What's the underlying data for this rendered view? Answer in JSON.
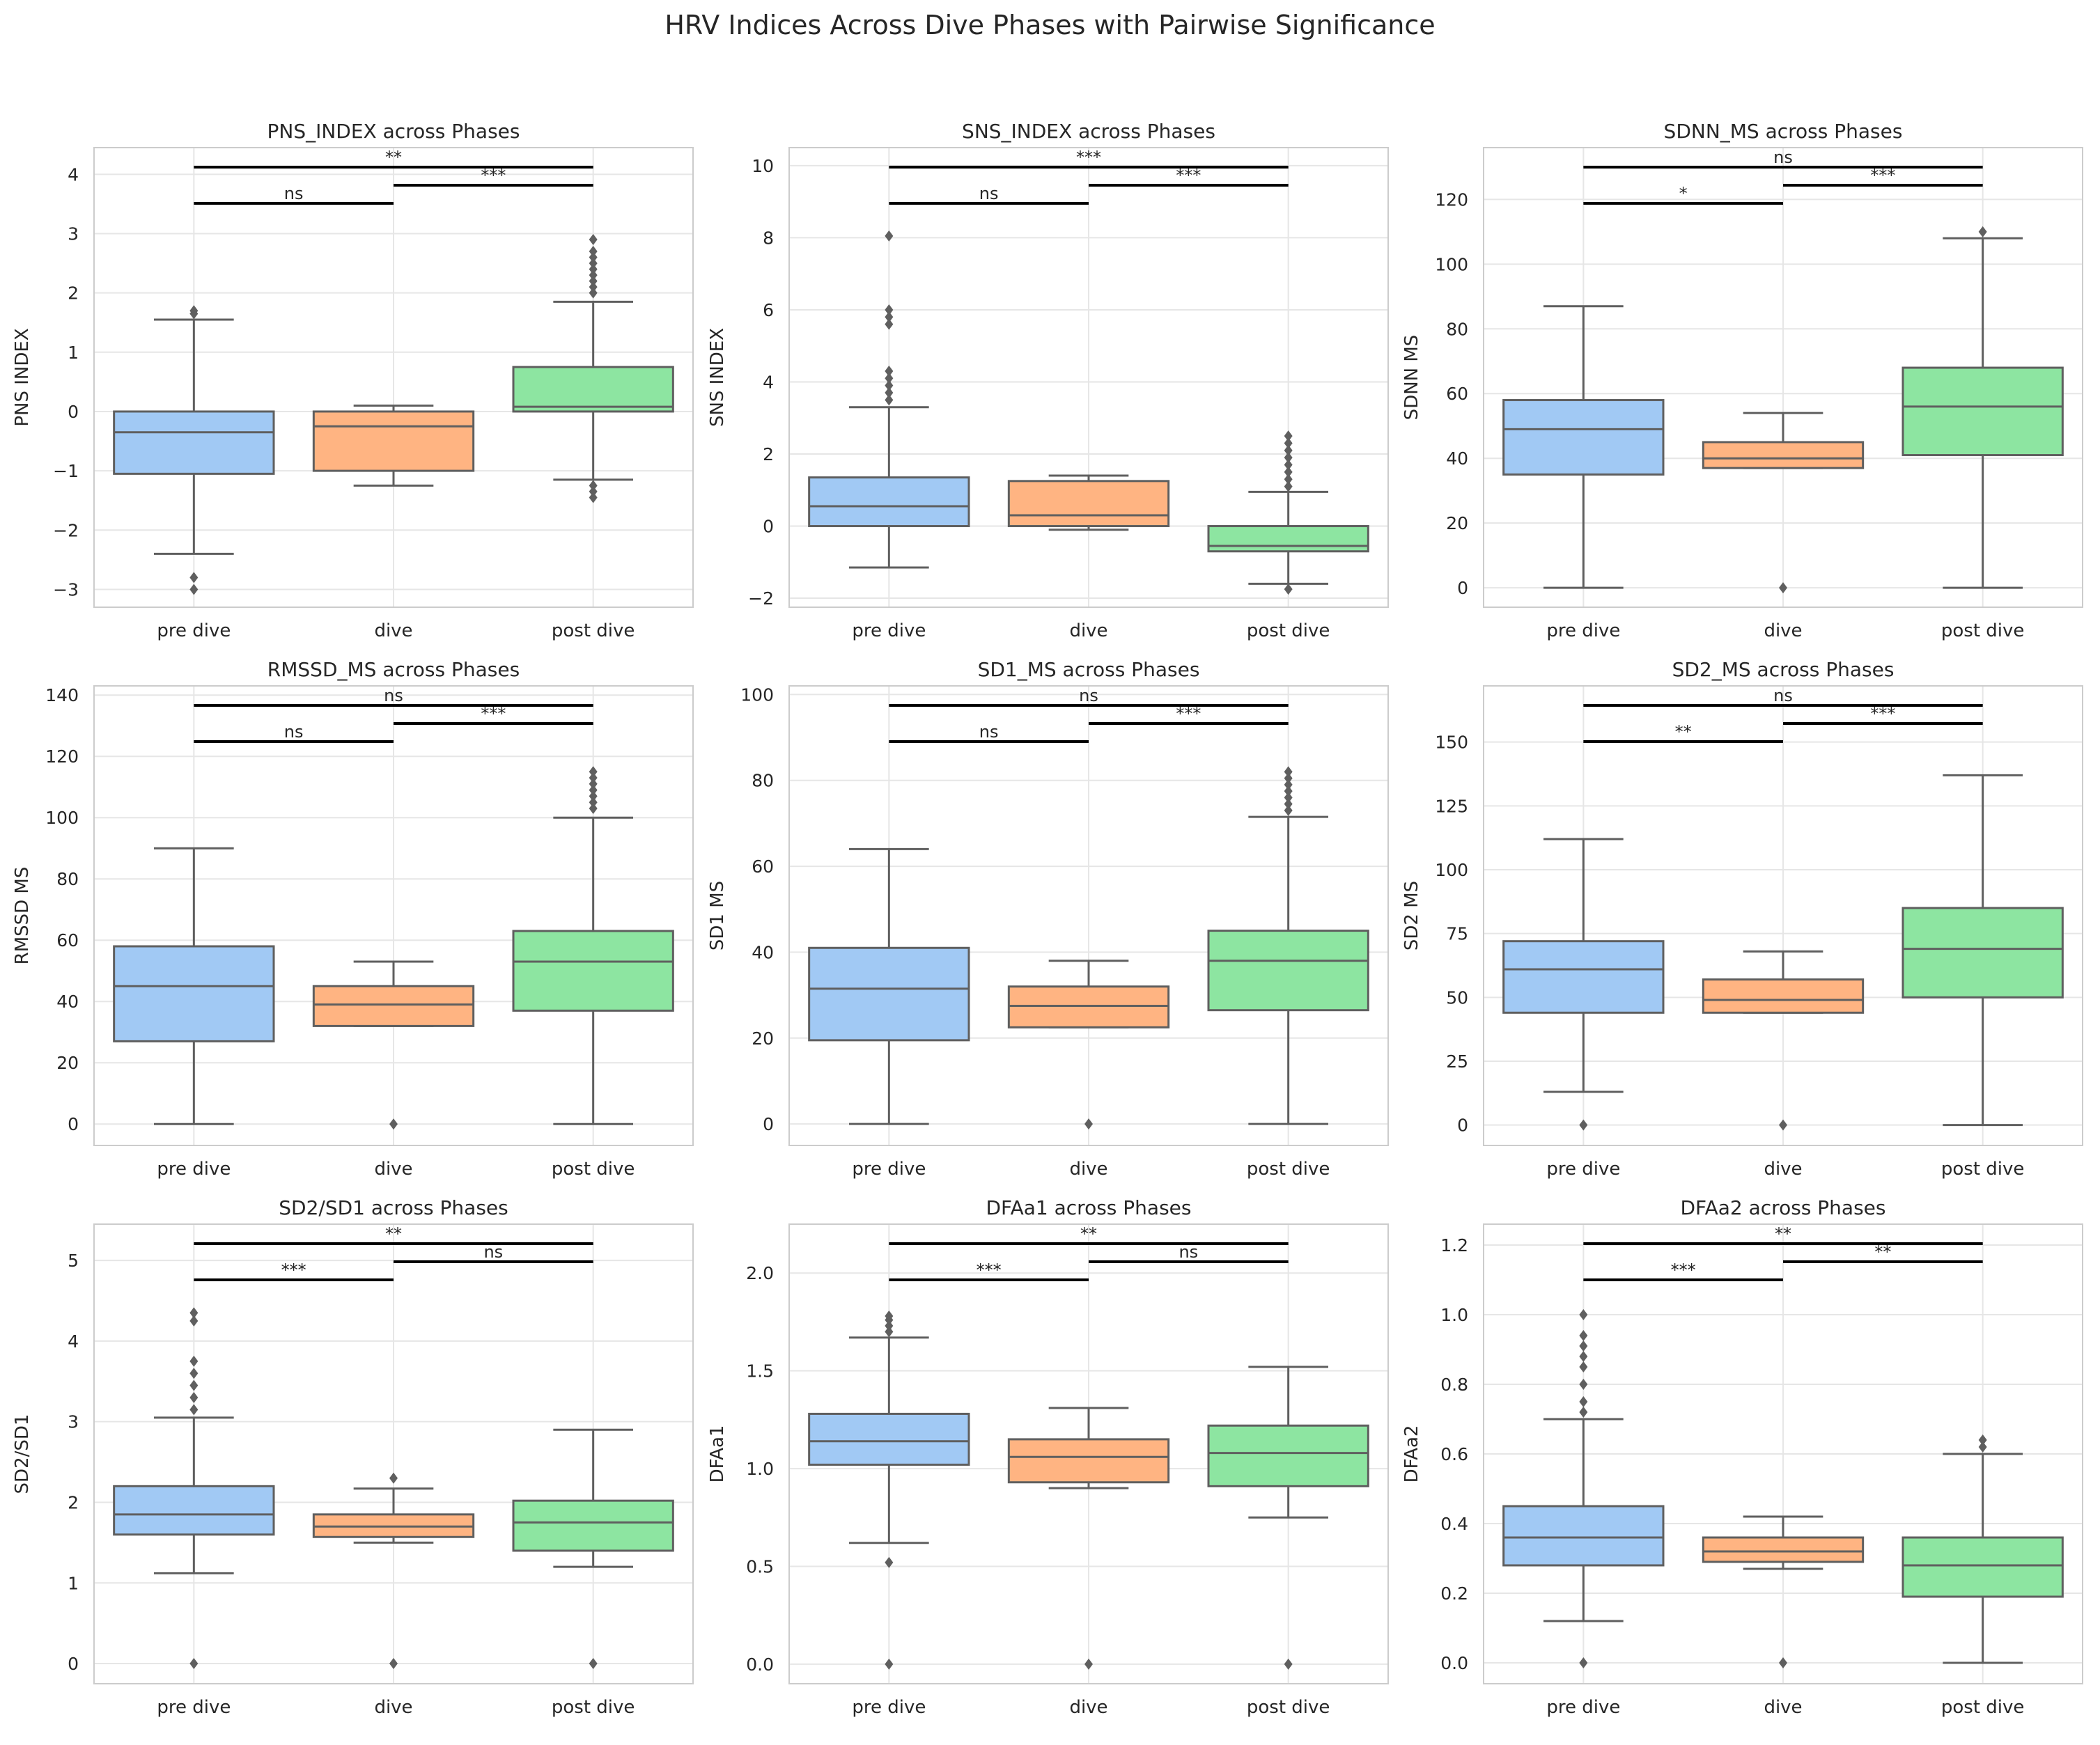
{
  "figure_title": "HRV Indices Across Dive Phases with Pairwise Significance",
  "chart_data": [
    {
      "type": "box",
      "title": "PNS_INDEX across Phases",
      "ylabel": "PNS INDEX",
      "categories": [
        "pre dive",
        "dive",
        "post dive"
      ],
      "ylim": [
        -3.3,
        4.45
      ],
      "yticks": [
        -3,
        -2,
        -1,
        0,
        1,
        2,
        3,
        4
      ],
      "boxes": [
        {
          "whislo": -2.4,
          "q1": -1.05,
          "med": -0.35,
          "q3": 0.0,
          "whishi": 1.55,
          "fliers": [
            -3.0,
            -2.8,
            1.65,
            1.7
          ]
        },
        {
          "whislo": -1.25,
          "q1": -1.0,
          "med": -0.25,
          "q3": 0.0,
          "whishi": 0.1,
          "fliers": []
        },
        {
          "whislo": -1.15,
          "q1": 0.0,
          "med": 0.08,
          "q3": 0.75,
          "whishi": 1.85,
          "fliers": [
            -1.45,
            -1.35,
            -1.25,
            2.0,
            2.1,
            2.2,
            2.3,
            2.4,
            2.5,
            2.6,
            2.7,
            2.9
          ]
        }
      ],
      "significance": [
        {
          "from": 0,
          "to": 1,
          "label": "ns"
        },
        {
          "from": 1,
          "to": 2,
          "label": "***"
        },
        {
          "from": 0,
          "to": 2,
          "label": "**"
        }
      ]
    },
    {
      "type": "box",
      "title": "SNS_INDEX across Phases",
      "ylabel": "SNS INDEX",
      "categories": [
        "pre dive",
        "dive",
        "post dive"
      ],
      "ylim": [
        -2.25,
        10.5
      ],
      "yticks": [
        -2,
        0,
        2,
        4,
        6,
        8,
        10
      ],
      "boxes": [
        {
          "whislo": -1.15,
          "q1": 0.0,
          "med": 0.55,
          "q3": 1.35,
          "whishi": 3.3,
          "fliers": [
            3.5,
            3.7,
            3.9,
            4.1,
            4.3,
            5.6,
            5.8,
            6.0,
            8.05
          ]
        },
        {
          "whislo": -0.1,
          "q1": 0.0,
          "med": 0.3,
          "q3": 1.25,
          "whishi": 1.4,
          "fliers": []
        },
        {
          "whislo": -1.6,
          "q1": -0.7,
          "med": -0.55,
          "q3": 0.0,
          "whishi": 0.95,
          "fliers": [
            -1.75,
            1.1,
            1.3,
            1.5,
            1.7,
            1.9,
            2.1,
            2.3,
            2.5
          ]
        }
      ],
      "significance": [
        {
          "from": 0,
          "to": 1,
          "label": "ns"
        },
        {
          "from": 1,
          "to": 2,
          "label": "***"
        },
        {
          "from": 0,
          "to": 2,
          "label": "***"
        }
      ]
    },
    {
      "type": "box",
      "title": "SDNN_MS across Phases",
      "ylabel": "SDNN MS",
      "categories": [
        "pre dive",
        "dive",
        "post dive"
      ],
      "ylim": [
        -6,
        136
      ],
      "yticks": [
        0,
        20,
        40,
        60,
        80,
        100,
        120
      ],
      "boxes": [
        {
          "whislo": 0,
          "q1": 35,
          "med": 49,
          "q3": 58,
          "whishi": 87,
          "fliers": []
        },
        {
          "whislo": 37,
          "q1": 37,
          "med": 40,
          "q3": 45,
          "whishi": 54,
          "fliers": [
            0
          ]
        },
        {
          "whislo": 0,
          "q1": 41,
          "med": 56,
          "q3": 68,
          "whishi": 108,
          "fliers": [
            110
          ]
        }
      ],
      "significance": [
        {
          "from": 0,
          "to": 1,
          "label": "*"
        },
        {
          "from": 1,
          "to": 2,
          "label": "***"
        },
        {
          "from": 0,
          "to": 2,
          "label": "ns"
        }
      ]
    },
    {
      "type": "box",
      "title": "RMSSD_MS across Phases",
      "ylabel": "RMSSD MS",
      "categories": [
        "pre dive",
        "dive",
        "post dive"
      ],
      "ylim": [
        -7,
        143
      ],
      "yticks": [
        0,
        20,
        40,
        60,
        80,
        100,
        120,
        140
      ],
      "boxes": [
        {
          "whislo": 0,
          "q1": 27,
          "med": 45,
          "q3": 58,
          "whishi": 90,
          "fliers": []
        },
        {
          "whislo": 32,
          "q1": 32,
          "med": 39,
          "q3": 45,
          "whishi": 53,
          "fliers": [
            0
          ]
        },
        {
          "whislo": 0,
          "q1": 37,
          "med": 53,
          "q3": 63,
          "whishi": 100,
          "fliers": [
            103,
            105,
            107,
            109,
            111,
            113,
            115
          ]
        }
      ],
      "significance": [
        {
          "from": 0,
          "to": 1,
          "label": "ns"
        },
        {
          "from": 1,
          "to": 2,
          "label": "***"
        },
        {
          "from": 0,
          "to": 2,
          "label": "ns"
        }
      ]
    },
    {
      "type": "box",
      "title": "SD1_MS across Phases",
      "ylabel": "SD1 MS",
      "categories": [
        "pre dive",
        "dive",
        "post dive"
      ],
      "ylim": [
        -5,
        102
      ],
      "yticks": [
        0,
        20,
        40,
        60,
        80,
        100
      ],
      "boxes": [
        {
          "whislo": 0,
          "q1": 19.5,
          "med": 31.5,
          "q3": 41,
          "whishi": 64,
          "fliers": []
        },
        {
          "whislo": 22.5,
          "q1": 22.5,
          "med": 27.5,
          "q3": 32,
          "whishi": 38,
          "fliers": [
            0
          ]
        },
        {
          "whislo": 0,
          "q1": 26.5,
          "med": 38,
          "q3": 45,
          "whishi": 71.5,
          "fliers": [
            73,
            74.5,
            76,
            77.5,
            79,
            80.5,
            82
          ]
        }
      ],
      "significance": [
        {
          "from": 0,
          "to": 1,
          "label": "ns"
        },
        {
          "from": 1,
          "to": 2,
          "label": "***"
        },
        {
          "from": 0,
          "to": 2,
          "label": "ns"
        }
      ]
    },
    {
      "type": "box",
      "title": "SD2_MS across Phases",
      "ylabel": "SD2 MS",
      "categories": [
        "pre dive",
        "dive",
        "post dive"
      ],
      "ylim": [
        -8,
        172
      ],
      "yticks": [
        0,
        25,
        50,
        75,
        100,
        125,
        150
      ],
      "boxes": [
        {
          "whislo": 13,
          "q1": 44,
          "med": 61,
          "q3": 72,
          "whishi": 112,
          "fliers": [
            0
          ]
        },
        {
          "whislo": 44,
          "q1": 44,
          "med": 49,
          "q3": 57,
          "whishi": 68,
          "fliers": [
            0
          ]
        },
        {
          "whislo": 0,
          "q1": 50,
          "med": 69,
          "q3": 85,
          "whishi": 137,
          "fliers": []
        }
      ],
      "significance": [
        {
          "from": 0,
          "to": 1,
          "label": "**"
        },
        {
          "from": 1,
          "to": 2,
          "label": "***"
        },
        {
          "from": 0,
          "to": 2,
          "label": "ns"
        }
      ]
    },
    {
      "type": "box",
      "title": "SD2/SD1 across Phases",
      "ylabel": "SD2/SD1",
      "categories": [
        "pre dive",
        "dive",
        "post dive"
      ],
      "ylim": [
        -0.25,
        5.45
      ],
      "yticks": [
        0,
        1,
        2,
        3,
        4,
        5
      ],
      "boxes": [
        {
          "whislo": 1.12,
          "q1": 1.6,
          "med": 1.85,
          "q3": 2.2,
          "whishi": 3.05,
          "fliers": [
            0,
            3.15,
            3.3,
            3.45,
            3.6,
            3.75,
            4.25,
            4.35
          ]
        },
        {
          "whislo": 1.5,
          "q1": 1.57,
          "med": 1.7,
          "q3": 1.85,
          "whishi": 2.17,
          "fliers": [
            0,
            2.3
          ]
        },
        {
          "whislo": 1.2,
          "q1": 1.4,
          "med": 1.75,
          "q3": 2.02,
          "whishi": 2.9,
          "fliers": [
            0
          ]
        }
      ],
      "significance": [
        {
          "from": 0,
          "to": 1,
          "label": "***"
        },
        {
          "from": 1,
          "to": 2,
          "label": "ns"
        },
        {
          "from": 0,
          "to": 2,
          "label": "**"
        }
      ]
    },
    {
      "type": "box",
      "title": "DFAa1 across Phases",
      "ylabel": "DFAa1",
      "categories": [
        "pre dive",
        "dive",
        "post dive"
      ],
      "ylim": [
        -0.1,
        2.25
      ],
      "yticks": [
        0.0,
        0.5,
        1.0,
        1.5,
        2.0
      ],
      "boxes": [
        {
          "whislo": 0.62,
          "q1": 1.02,
          "med": 1.14,
          "q3": 1.28,
          "whishi": 1.67,
          "fliers": [
            0,
            0.52,
            1.7,
            1.73,
            1.76,
            1.78
          ]
        },
        {
          "whislo": 0.9,
          "q1": 0.93,
          "med": 1.06,
          "q3": 1.15,
          "whishi": 1.31,
          "fliers": [
            0
          ]
        },
        {
          "whislo": 0.75,
          "q1": 0.91,
          "med": 1.08,
          "q3": 1.22,
          "whishi": 1.52,
          "fliers": [
            0
          ]
        }
      ],
      "significance": [
        {
          "from": 0,
          "to": 1,
          "label": "***"
        },
        {
          "from": 1,
          "to": 2,
          "label": "ns"
        },
        {
          "from": 0,
          "to": 2,
          "label": "**"
        }
      ]
    },
    {
      "type": "box",
      "title": "DFAa2 across Phases",
      "ylabel": "DFAa2",
      "categories": [
        "pre dive",
        "dive",
        "post dive"
      ],
      "ylim": [
        -0.06,
        1.26
      ],
      "yticks": [
        0.0,
        0.2,
        0.4,
        0.6,
        0.8,
        1.0,
        1.2
      ],
      "boxes": [
        {
          "whislo": 0.12,
          "q1": 0.28,
          "med": 0.36,
          "q3": 0.45,
          "whishi": 0.7,
          "fliers": [
            0,
            0.72,
            0.75,
            0.8,
            0.85,
            0.88,
            0.91,
            0.94,
            1.0
          ]
        },
        {
          "whislo": 0.27,
          "q1": 0.29,
          "med": 0.32,
          "q3": 0.36,
          "whishi": 0.42,
          "fliers": [
            0
          ]
        },
        {
          "whislo": 0.0,
          "q1": 0.19,
          "med": 0.28,
          "q3": 0.36,
          "whishi": 0.6,
          "fliers": [
            0.62,
            0.64
          ]
        }
      ],
      "significance": [
        {
          "from": 0,
          "to": 1,
          "label": "***"
        },
        {
          "from": 1,
          "to": 2,
          "label": "**"
        },
        {
          "from": 0,
          "to": 2,
          "label": "**"
        }
      ]
    }
  ],
  "colors": {
    "pre_dive": "#a1c9f4",
    "dive": "#ffb482",
    "post_dive": "#8de5a1",
    "edge": "#5f5f5f",
    "grid": "#e6e6e6",
    "text": "#262626"
  }
}
